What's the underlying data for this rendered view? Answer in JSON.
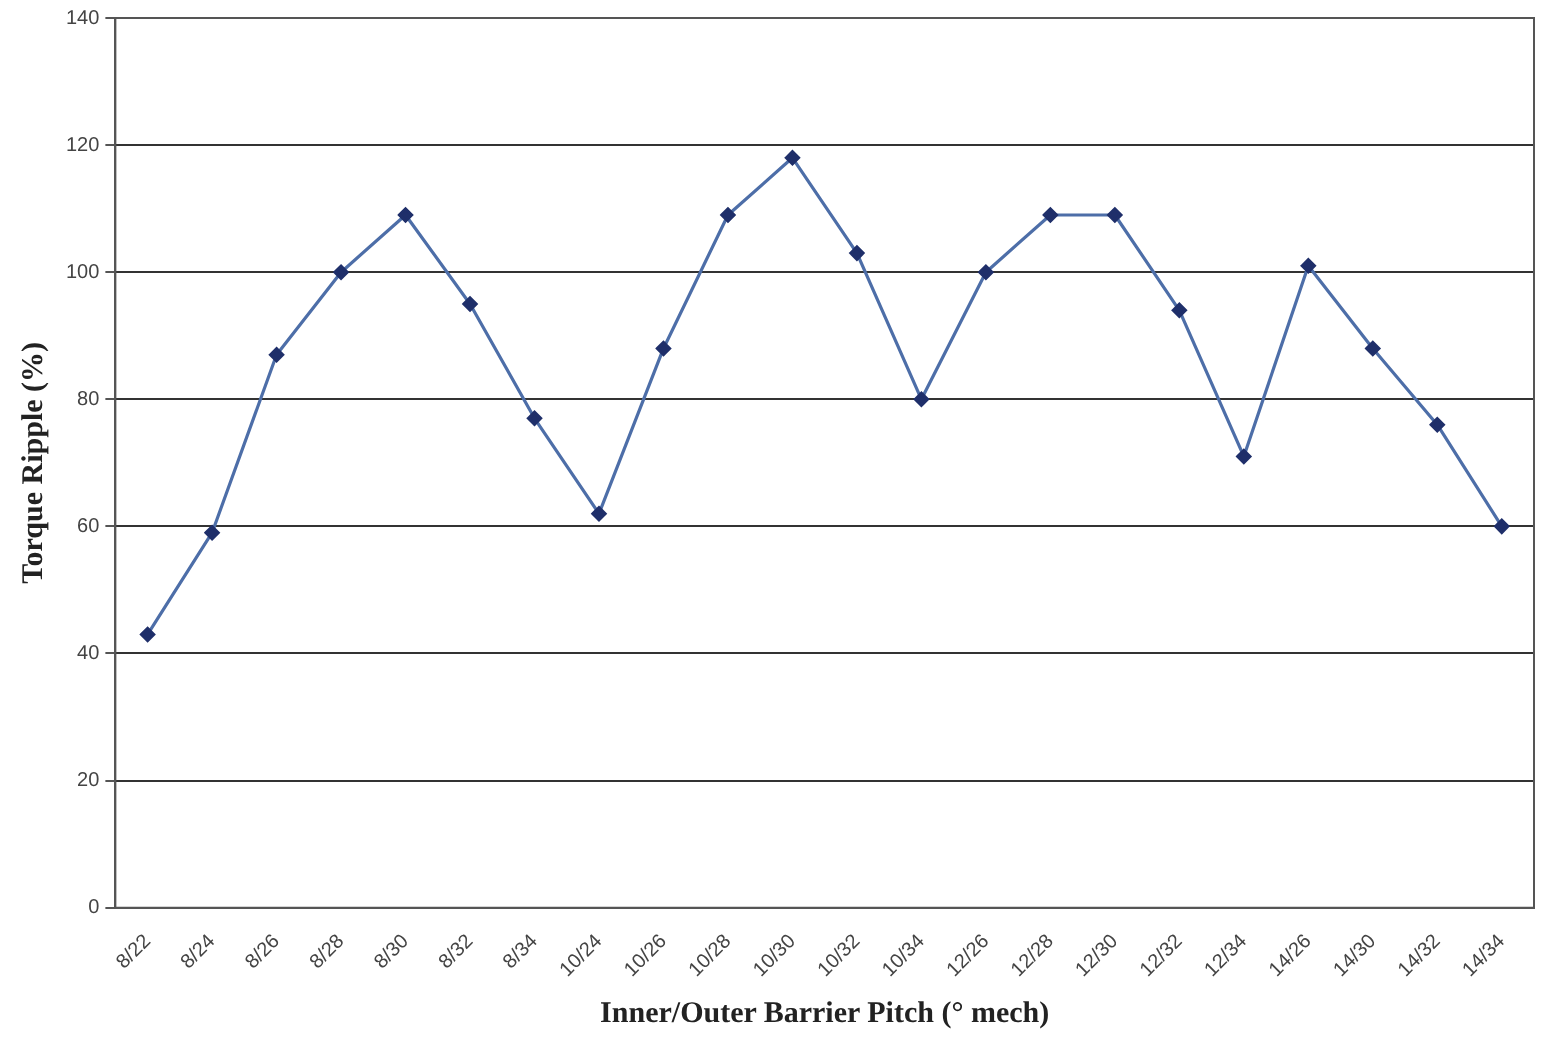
{
  "chart_data": {
    "type": "line",
    "xlabel": "Inner/Outer Barrier Pitch (° mech)",
    "ylabel": "Torque Ripple (%)",
    "categories": [
      "8/22",
      "8/24",
      "8/26",
      "8/28",
      "8/30",
      "8/32",
      "8/34",
      "10/24",
      "10/26",
      "10/28",
      "10/30",
      "10/32",
      "10/34",
      "12/26",
      "12/28",
      "12/30",
      "12/32",
      "12/34",
      "14/26",
      "14/30",
      "14/32",
      "14/34"
    ],
    "series": [
      {
        "color": "#4d6ea8",
        "values": [
          43,
          59,
          87,
          100,
          109,
          95,
          77,
          62,
          88,
          109,
          118,
          103,
          80,
          100,
          109,
          109,
          94,
          71,
          101,
          88,
          76,
          60
        ]
      }
    ],
    "ylim": [
      0,
      140
    ],
    "yticks": [
      0,
      20,
      40,
      60,
      80,
      100,
      120,
      140
    ],
    "grid": "y",
    "legend": false,
    "marker": "diamond",
    "line_style": "solid"
  }
}
